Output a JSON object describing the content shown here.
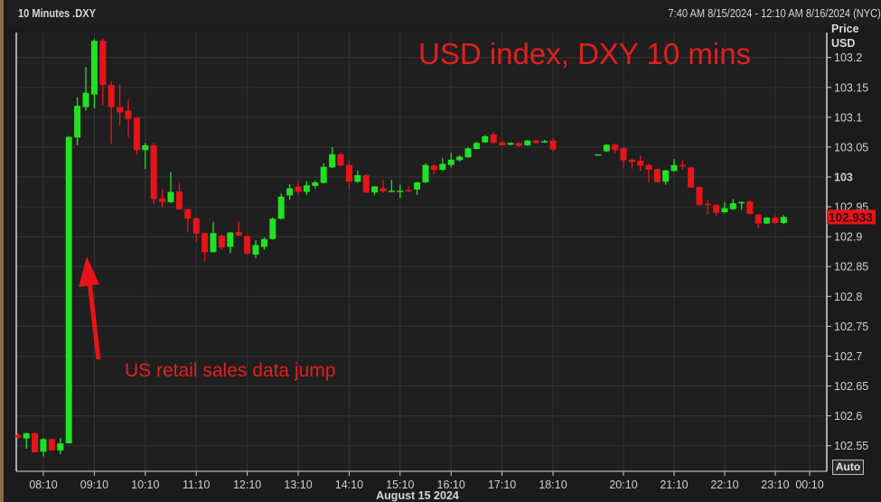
{
  "header": {
    "title": "10 Minutes .DXY",
    "range": "7:40 AM 8/15/2024 - 12:10 AM 8/16/2024 (NYC)"
  },
  "axis": {
    "price_label": "Price",
    "currency_label": "USD",
    "auto_button": "Auto",
    "date_label": "August 15 2024"
  },
  "colors": {
    "up": "#22e022",
    "down": "#e8141a",
    "background": "#1f1f1f",
    "grid": "#353535",
    "annotation": "#e0201e"
  },
  "chart_data": {
    "type": "candlestick",
    "title": "USD index, DXY 10 mins",
    "annotations": [
      {
        "text": "US retail sales data jump",
        "arrow": "up",
        "points_to": "08:40"
      }
    ],
    "y_axis": {
      "position": "right",
      "ylim": [
        102.52,
        103.24
      ],
      "ticks": [
        "102.55",
        "102.6",
        "102.65",
        "102.7",
        "102.75",
        "102.8",
        "102.85",
        "102.9",
        "102.95",
        "103",
        "103.05",
        "103.1",
        "103.15",
        "103.2"
      ]
    },
    "x_axis": {
      "ticks": [
        "08:10",
        "09:10",
        "10:10",
        "11:10",
        "12:10",
        "13:10",
        "14:10",
        "15:10",
        "16:10",
        "17:10",
        "18:10",
        "20:10",
        "21:10",
        "22:10",
        "23:10",
        "00:10"
      ]
    },
    "grid": true,
    "last_price": "102.933",
    "candle_fields": [
      "time",
      "open",
      "high",
      "low",
      "close"
    ],
    "candles": [
      [
        "07:40",
        102.568,
        102.571,
        102.561,
        102.564
      ],
      [
        "07:50",
        102.562,
        102.572,
        102.545,
        102.571
      ],
      [
        "08:00",
        102.571,
        102.573,
        102.539,
        102.539
      ],
      [
        "08:10",
        102.54,
        102.563,
        102.532,
        102.561
      ],
      [
        "08:20",
        102.561,
        102.562,
        102.542,
        102.542
      ],
      [
        "08:30",
        102.542,
        102.563,
        102.536,
        102.554
      ],
      [
        "08:40",
        102.554,
        103.069,
        102.554,
        103.067
      ],
      [
        "08:50",
        103.066,
        103.133,
        103.053,
        103.119
      ],
      [
        "09:00",
        103.117,
        103.184,
        103.111,
        103.141
      ],
      [
        "09:10",
        103.138,
        103.231,
        103.115,
        103.228
      ],
      [
        "09:20",
        103.228,
        103.232,
        103.121,
        103.154
      ],
      [
        "09:30",
        103.154,
        103.16,
        103.056,
        103.117
      ],
      [
        "09:40",
        103.117,
        103.155,
        103.085,
        103.108
      ],
      [
        "09:50",
        103.111,
        103.13,
        103.067,
        103.097
      ],
      [
        "10:00",
        103.099,
        103.1,
        103.037,
        103.045
      ],
      [
        "10:10",
        103.045,
        103.057,
        103.013,
        103.053
      ],
      [
        "10:20",
        103.053,
        103.057,
        102.954,
        102.963
      ],
      [
        "10:30",
        102.964,
        102.98,
        102.949,
        102.958
      ],
      [
        "10:40",
        102.958,
        103.008,
        102.956,
        102.975
      ],
      [
        "10:50",
        102.976,
        102.99,
        102.945,
        102.946
      ],
      [
        "11:00",
        102.946,
        102.947,
        102.908,
        102.93
      ],
      [
        "11:10",
        102.931,
        102.932,
        102.891,
        102.905
      ],
      [
        "11:20",
        102.906,
        102.907,
        102.859,
        102.874
      ],
      [
        "11:30",
        102.874,
        102.925,
        102.874,
        102.906
      ],
      [
        "11:40",
        102.902,
        102.903,
        102.878,
        102.882
      ],
      [
        "11:50",
        102.883,
        102.908,
        102.872,
        102.907
      ],
      [
        "12:00",
        102.908,
        102.926,
        102.901,
        102.902
      ],
      [
        "12:10",
        102.901,
        102.902,
        102.87,
        102.872
      ],
      [
        "12:20",
        102.87,
        102.894,
        102.864,
        102.886
      ],
      [
        "12:30",
        102.883,
        102.899,
        102.878,
        102.896
      ],
      [
        "12:40",
        102.896,
        102.932,
        102.895,
        102.93
      ],
      [
        "12:50",
        102.93,
        102.972,
        102.929,
        102.967
      ],
      [
        "13:00",
        102.969,
        102.988,
        102.962,
        102.981
      ],
      [
        "13:10",
        102.984,
        102.993,
        102.969,
        102.975
      ],
      [
        "13:20",
        102.975,
        102.993,
        102.97,
        102.986
      ],
      [
        "13:30",
        102.985,
        102.994,
        102.981,
        102.991
      ],
      [
        "13:40",
        102.99,
        103.023,
        102.989,
        103.017
      ],
      [
        "13:50",
        103.016,
        103.05,
        103.015,
        103.038
      ],
      [
        "14:00",
        103.038,
        103.041,
        103.018,
        103.019
      ],
      [
        "14:10",
        103.02,
        103.027,
        102.98,
        102.992
      ],
      [
        "14:20",
        102.992,
        103.011,
        102.99,
        103.003
      ],
      [
        "14:30",
        103.003,
        103.004,
        102.973,
        102.974
      ],
      [
        "14:40",
        102.974,
        102.985,
        102.97,
        102.984
      ],
      [
        "14:50",
        102.981,
        102.995,
        102.973,
        102.976
      ],
      [
        "15:00",
        102.976,
        102.995,
        102.976,
        102.977
      ],
      [
        "15:10",
        102.976,
        102.987,
        102.965,
        102.977
      ],
      [
        "15:20",
        102.978,
        102.984,
        102.975,
        102.976
      ],
      [
        "15:30",
        102.979,
        102.992,
        102.97,
        102.991
      ],
      [
        "15:40",
        102.991,
        103.023,
        102.99,
        103.02
      ],
      [
        "15:50",
        103.019,
        103.021,
        103.005,
        103.012
      ],
      [
        "16:00",
        103.012,
        103.032,
        103.01,
        103.022
      ],
      [
        "16:10",
        103.02,
        103.04,
        103.016,
        103.029
      ],
      [
        "16:20",
        103.028,
        103.036,
        103.026,
        103.034
      ],
      [
        "16:30",
        103.033,
        103.05,
        103.032,
        103.048
      ],
      [
        "16:40",
        103.047,
        103.059,
        103.046,
        103.057
      ],
      [
        "16:50",
        103.058,
        103.07,
        103.057,
        103.068
      ],
      [
        "17:00",
        103.071,
        103.075,
        103.055,
        103.057
      ],
      [
        "17:10",
        103.058,
        103.06,
        103.052,
        103.053
      ],
      [
        "17:20",
        103.054,
        103.058,
        103.053,
        103.057
      ],
      [
        "17:30",
        103.057,
        103.058,
        103.05,
        103.052
      ],
      [
        "17:40",
        103.053,
        103.062,
        103.052,
        103.061
      ],
      [
        "17:50",
        103.061,
        103.062,
        103.056,
        103.057
      ],
      [
        "18:00",
        103.058,
        103.062,
        103.057,
        103.06
      ],
      [
        "18:10",
        103.061,
        103.065,
        103.042,
        103.046
      ],
      [
        "19:40",
        103.038,
        103.038,
        103.038,
        103.038
      ],
      [
        "19:50",
        103.043,
        103.055,
        103.042,
        103.054
      ],
      [
        "20:00",
        103.054,
        103.056,
        103.04,
        103.045
      ],
      [
        "20:10",
        103.048,
        103.05,
        103.014,
        103.028
      ],
      [
        "20:20",
        103.029,
        103.031,
        103.014,
        103.025
      ],
      [
        "20:30",
        103.027,
        103.036,
        103.01,
        103.019
      ],
      [
        "20:40",
        103.02,
        103.022,
        102.991,
        103.012
      ],
      [
        "20:50",
        103.013,
        103.014,
        102.991,
        102.991
      ],
      [
        "21:00",
        102.992,
        103.012,
        102.987,
        103.011
      ],
      [
        "21:10",
        103.01,
        103.03,
        103.009,
        103.02
      ],
      [
        "21:20",
        103.02,
        103.028,
        103.012,
        103.018
      ],
      [
        "21:30",
        103.016,
        103.017,
        102.982,
        102.982
      ],
      [
        "21:40",
        102.983,
        102.984,
        102.953,
        102.953
      ],
      [
        "21:50",
        102.955,
        102.962,
        102.937,
        102.953
      ],
      [
        "22:00",
        102.953,
        102.954,
        102.934,
        102.94
      ],
      [
        "22:10",
        102.941,
        102.958,
        102.939,
        102.948
      ],
      [
        "22:20",
        102.946,
        102.963,
        102.945,
        102.956
      ],
      [
        "22:30",
        102.958,
        102.959,
        102.945,
        102.958
      ],
      [
        "22:40",
        102.959,
        102.96,
        102.937,
        102.938
      ],
      [
        "22:50",
        102.937,
        102.938,
        102.914,
        102.922
      ],
      [
        "23:00",
        102.922,
        102.933,
        102.921,
        102.932
      ],
      [
        "23:10",
        102.932,
        102.936,
        102.922,
        102.923
      ],
      [
        "23:20",
        102.923,
        102.936,
        102.921,
        102.933
      ]
    ]
  }
}
